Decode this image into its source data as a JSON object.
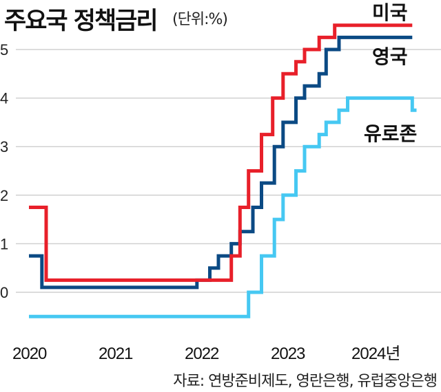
{
  "header": {
    "title": "주요국 정책금리",
    "unit": "(단위:%)"
  },
  "footer": {
    "source": "자료: 연방준비제도, 영란은행, 유럽중앙은행"
  },
  "chart_data": {
    "type": "line",
    "title": "주요국 정책금리",
    "subtitle": "(단위:%)",
    "xlabel": "",
    "ylabel": "%",
    "ylim": [
      -0.75,
      5.75
    ],
    "yticks": [
      0,
      1,
      2,
      3,
      4,
      5
    ],
    "xticks": [
      "2020",
      "2021",
      "2022",
      "2023",
      "2024년"
    ],
    "grid": true,
    "legend_position": "inline-right",
    "step": true,
    "colors": {
      "미국": "#e8202a",
      "영국": "#0b4a84",
      "유로존": "#46c8f2"
    },
    "series": [
      {
        "name": "미국",
        "points": [
          [
            2020.0,
            1.75
          ],
          [
            2020.2,
            1.75
          ],
          [
            2020.2,
            0.25
          ],
          [
            2022.2,
            0.25
          ],
          [
            2022.2,
            0.25
          ],
          [
            2022.35,
            0.25
          ],
          [
            2022.35,
            0.75
          ],
          [
            2022.45,
            0.75
          ],
          [
            2022.45,
            1.75
          ],
          [
            2022.55,
            1.75
          ],
          [
            2022.55,
            2.5
          ],
          [
            2022.7,
            2.5
          ],
          [
            2022.7,
            3.25
          ],
          [
            2022.83,
            3.25
          ],
          [
            2022.83,
            4.0
          ],
          [
            2022.95,
            4.0
          ],
          [
            2022.95,
            4.5
          ],
          [
            2023.1,
            4.5
          ],
          [
            2023.1,
            4.75
          ],
          [
            2023.2,
            4.75
          ],
          [
            2023.2,
            5.0
          ],
          [
            2023.37,
            5.0
          ],
          [
            2023.37,
            5.25
          ],
          [
            2023.55,
            5.25
          ],
          [
            2023.55,
            5.5
          ],
          [
            2024.45,
            5.5
          ]
        ]
      },
      {
        "name": "영국",
        "points": [
          [
            2020.0,
            0.75
          ],
          [
            2020.15,
            0.75
          ],
          [
            2020.15,
            0.1
          ],
          [
            2021.95,
            0.1
          ],
          [
            2021.95,
            0.25
          ],
          [
            2022.1,
            0.25
          ],
          [
            2022.1,
            0.5
          ],
          [
            2022.2,
            0.5
          ],
          [
            2022.2,
            0.75
          ],
          [
            2022.35,
            0.75
          ],
          [
            2022.35,
            1.0
          ],
          [
            2022.45,
            1.0
          ],
          [
            2022.45,
            1.25
          ],
          [
            2022.6,
            1.25
          ],
          [
            2022.6,
            1.75
          ],
          [
            2022.7,
            1.75
          ],
          [
            2022.7,
            2.25
          ],
          [
            2022.85,
            2.25
          ],
          [
            2022.85,
            3.0
          ],
          [
            2022.95,
            3.0
          ],
          [
            2022.95,
            3.5
          ],
          [
            2023.1,
            3.5
          ],
          [
            2023.1,
            4.0
          ],
          [
            2023.2,
            4.0
          ],
          [
            2023.2,
            4.25
          ],
          [
            2023.37,
            4.25
          ],
          [
            2023.37,
            4.5
          ],
          [
            2023.45,
            4.5
          ],
          [
            2023.45,
            5.0
          ],
          [
            2023.6,
            5.0
          ],
          [
            2023.6,
            5.25
          ],
          [
            2024.45,
            5.25
          ]
        ]
      },
      {
        "name": "유로존",
        "points": [
          [
            2020.0,
            -0.5
          ],
          [
            2022.55,
            -0.5
          ],
          [
            2022.55,
            0.0
          ],
          [
            2022.7,
            0.0
          ],
          [
            2022.7,
            0.75
          ],
          [
            2022.85,
            0.75
          ],
          [
            2022.85,
            1.5
          ],
          [
            2022.95,
            1.5
          ],
          [
            2022.95,
            2.0
          ],
          [
            2023.1,
            2.0
          ],
          [
            2023.1,
            2.5
          ],
          [
            2023.2,
            2.5
          ],
          [
            2023.2,
            3.0
          ],
          [
            2023.37,
            3.0
          ],
          [
            2023.37,
            3.25
          ],
          [
            2023.45,
            3.25
          ],
          [
            2023.45,
            3.5
          ],
          [
            2023.6,
            3.5
          ],
          [
            2023.6,
            3.75
          ],
          [
            2023.7,
            3.75
          ],
          [
            2023.7,
            4.0
          ],
          [
            2024.45,
            4.0
          ],
          [
            2024.45,
            3.75
          ],
          [
            2024.5,
            3.75
          ]
        ]
      }
    ]
  }
}
